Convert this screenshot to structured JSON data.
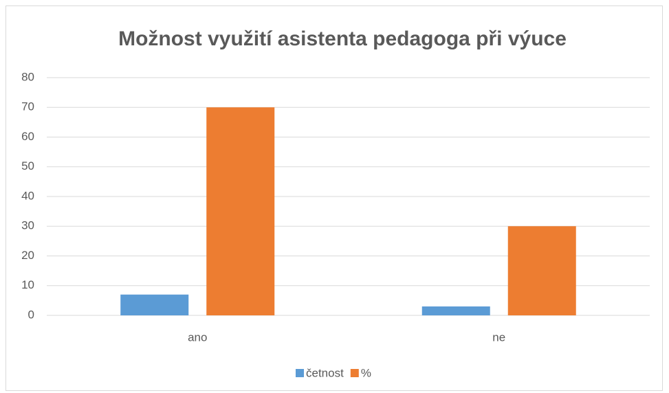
{
  "chart_data": {
    "type": "bar",
    "title": "Možnost využití asistenta pedagoga při výuce",
    "categories": [
      "ano",
      "ne"
    ],
    "series": [
      {
        "name": "četnost",
        "color": "#5b9bd5",
        "values": [
          7,
          3
        ]
      },
      {
        "name": "%",
        "color": "#ed7d31",
        "values": [
          70,
          30
        ]
      }
    ],
    "ylim": [
      0,
      80
    ],
    "yticks": [
      0,
      10,
      20,
      30,
      40,
      50,
      60,
      70,
      80
    ],
    "grid": true,
    "legend": "bottom"
  }
}
